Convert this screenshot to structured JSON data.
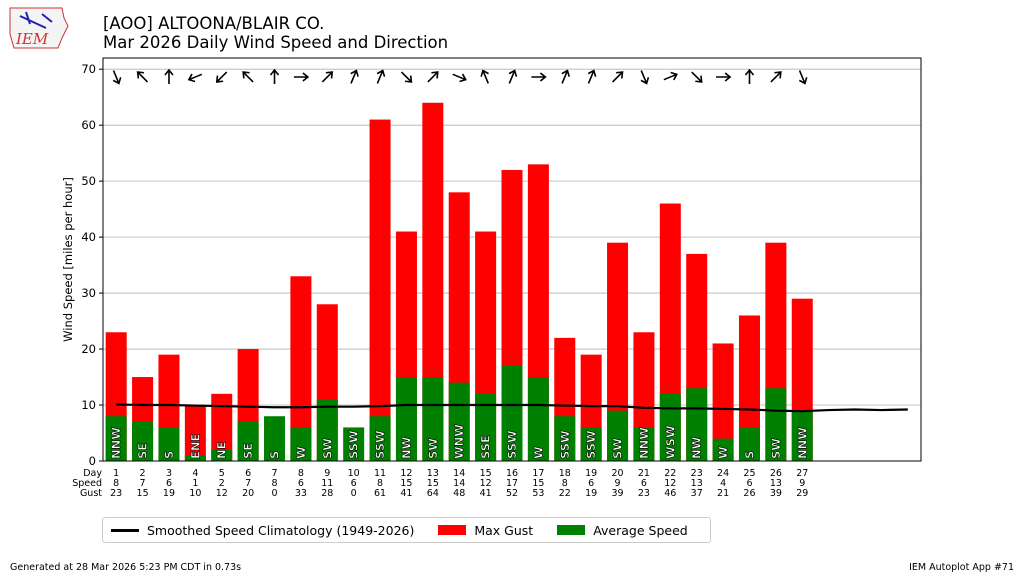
{
  "logo": {
    "text": "IEM"
  },
  "title": {
    "line1": "[AOO] ALTOONA/BLAIR CO.",
    "line2": "Mar 2026 Daily Wind Speed and Direction"
  },
  "colors": {
    "gust": "#ff0000",
    "speed": "#008000",
    "climo": "#000000"
  },
  "chart_data": {
    "type": "bar",
    "ylabel": "Wind Speed [miles per hour]",
    "ylim": [
      0,
      72
    ],
    "xlim": [
      0.5,
      31.5
    ],
    "yticks": [
      0,
      10,
      20,
      30,
      40,
      50,
      60,
      70
    ],
    "row_labels": [
      "Day",
      "Speed",
      "Gust"
    ],
    "days": [
      1,
      2,
      3,
      4,
      5,
      6,
      7,
      8,
      9,
      10,
      11,
      12,
      13,
      14,
      15,
      16,
      17,
      18,
      19,
      20,
      21,
      22,
      23,
      24,
      25,
      26,
      27
    ],
    "speed": [
      8,
      7,
      6,
      1,
      2,
      7,
      8,
      6,
      11,
      6,
      8,
      15,
      15,
      14,
      12,
      17,
      15,
      8,
      6,
      9,
      6,
      12,
      13,
      4,
      6,
      13,
      9
    ],
    "gust": [
      23,
      15,
      19,
      10,
      12,
      20,
      0,
      33,
      28,
      0,
      61,
      41,
      64,
      48,
      41,
      52,
      53,
      22,
      19,
      39,
      23,
      46,
      37,
      21,
      26,
      39,
      29
    ],
    "direction": [
      "NNW",
      "SE",
      "S",
      "ENE",
      "NE",
      "SE",
      "S",
      "W",
      "SW",
      "SSW",
      "SSW",
      "NW",
      "SW",
      "WNW",
      "SSE",
      "SSW",
      "W",
      "SSW",
      "SSW",
      "SW",
      "NNW",
      "WSW",
      "NW",
      "W",
      "S",
      "SW",
      "NNW"
    ],
    "climatology": [
      10.1,
      10.0,
      10.0,
      9.9,
      9.8,
      9.7,
      9.6,
      9.6,
      9.7,
      9.7,
      9.8,
      10.0,
      10.0,
      10.0,
      10.0,
      10.0,
      10.0,
      9.9,
      9.8,
      9.8,
      9.5,
      9.4,
      9.4,
      9.3,
      9.2,
      9.0,
      8.9,
      9.1,
      9.2,
      9.1,
      9.2
    ],
    "legend": [
      "Smoothed Speed Climatology (1949-2026)",
      "Max Gust",
      "Average Speed"
    ]
  },
  "footer": {
    "left": "Generated at 28 Mar 2026 5:23 PM CDT in 0.73s",
    "right": "IEM Autoplot App #71"
  }
}
